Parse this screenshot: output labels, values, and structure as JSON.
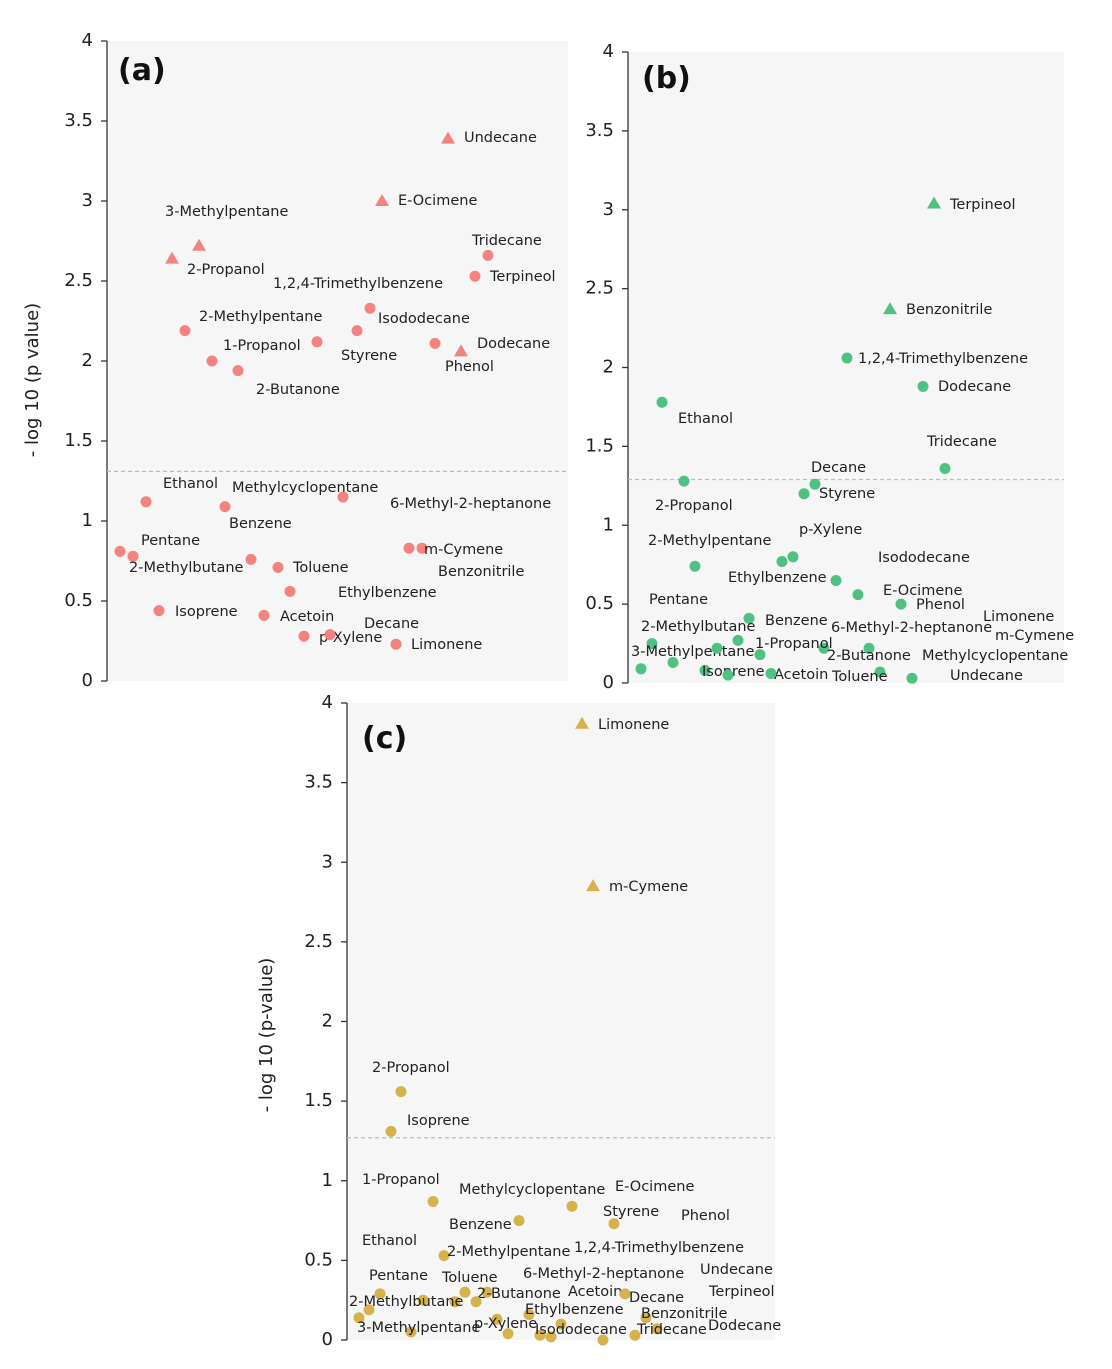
{
  "chart_data": [
    {
      "type": "scatter",
      "panel_label": "(a)",
      "ylabel": "- log 10 (p value)",
      "ylim": [
        0,
        4
      ],
      "yticks": [
        "0",
        "0.5",
        "1",
        "1.5",
        "2",
        "2.5",
        "3",
        "3.5",
        "4"
      ],
      "threshold": 1.31,
      "color": "#f4837f",
      "points": [
        {
          "label": "Undecane",
          "y": 3.39,
          "marker": "triangle"
        },
        {
          "label": "E-Ocimene",
          "y": 3.0,
          "marker": "triangle"
        },
        {
          "label": "3-Methylpentane",
          "y": 2.72,
          "marker": "triangle"
        },
        {
          "label": "2-Propanol",
          "y": 2.64,
          "marker": "triangle"
        },
        {
          "label": "Phenol",
          "y": 2.06,
          "marker": "triangle"
        },
        {
          "label": "Tridecane",
          "y": 2.66,
          "marker": "circle"
        },
        {
          "label": "Terpineol",
          "y": 2.53,
          "marker": "circle"
        },
        {
          "label": "1,2,4-Trimethylbenzene",
          "y": 2.33,
          "marker": "circle"
        },
        {
          "label": "Isododecane",
          "y": 2.19,
          "marker": "circle"
        },
        {
          "label": "2-Methylpentane",
          "y": 2.19,
          "marker": "circle"
        },
        {
          "label": "Dodecane",
          "y": 2.11,
          "marker": "circle"
        },
        {
          "label": "Styrene",
          "y": 2.12,
          "marker": "circle"
        },
        {
          "label": "1-Propanol",
          "y": 2.0,
          "marker": "circle"
        },
        {
          "label": "2-Butanone",
          "y": 1.94,
          "marker": "circle"
        },
        {
          "label": "Ethanol",
          "y": 1.12,
          "marker": "circle"
        },
        {
          "label": "Methylcyclopentane",
          "y": 1.15,
          "marker": "circle"
        },
        {
          "label": "Benzene",
          "y": 1.09,
          "marker": "circle"
        },
        {
          "label": "6-Methyl-2-heptanone",
          "y": 0.83,
          "marker": "circle"
        },
        {
          "label": "m-Cymene",
          "y": 0.83,
          "marker": "circle"
        },
        {
          "label": "Pentane",
          "y": 0.81,
          "marker": "circle"
        },
        {
          "label": "2-Methylbutane",
          "y": 0.78,
          "marker": "circle"
        },
        {
          "label": "Benzonitrile",
          "y": 0.76,
          "marker": "circle"
        },
        {
          "label": "Toluene",
          "y": 0.71,
          "marker": "circle"
        },
        {
          "label": "Ethylbenzene",
          "y": 0.56,
          "marker": "circle"
        },
        {
          "label": "Isoprene",
          "y": 0.44,
          "marker": "circle"
        },
        {
          "label": "Acetoin",
          "y": 0.41,
          "marker": "circle"
        },
        {
          "label": "p-Xylene",
          "y": 0.28,
          "marker": "circle"
        },
        {
          "label": "Decane",
          "y": 0.29,
          "marker": "circle"
        },
        {
          "label": "Limonene",
          "y": 0.23,
          "marker": "circle"
        }
      ]
    },
    {
      "type": "scatter",
      "panel_label": "(b)",
      "ylabel": "",
      "ylim": [
        0,
        4
      ],
      "yticks": [
        "0",
        "0.5",
        "1",
        "1.5",
        "2",
        "2.5",
        "3",
        "3.5",
        "4"
      ],
      "threshold": 1.29,
      "color": "#4fc183",
      "points": [
        {
          "label": "Terpineol",
          "y": 3.04,
          "marker": "triangle"
        },
        {
          "label": "Benzonitrile",
          "y": 2.37,
          "marker": "triangle"
        },
        {
          "label": "1,2,4-Trimethylbenzene",
          "y": 2.06,
          "marker": "circle"
        },
        {
          "label": "Dodecane",
          "y": 1.88,
          "marker": "circle"
        },
        {
          "label": "Ethanol",
          "y": 1.78,
          "marker": "circle"
        },
        {
          "label": "Tridecane",
          "y": 1.36,
          "marker": "circle"
        },
        {
          "label": "Decane",
          "y": 1.26,
          "marker": "circle"
        },
        {
          "label": "2-Propanol",
          "y": 1.28,
          "marker": "circle"
        },
        {
          "label": "Styrene",
          "y": 1.2,
          "marker": "circle"
        },
        {
          "label": "p-Xylene",
          "y": 0.8,
          "marker": "circle"
        },
        {
          "label": "Isododecane",
          "y": 0.77,
          "marker": "circle"
        },
        {
          "label": "2-Methylpentane",
          "y": 0.74,
          "marker": "circle"
        },
        {
          "label": "Ethylbenzene",
          "y": 0.65,
          "marker": "circle"
        },
        {
          "label": "E-Ocimene",
          "y": 0.56,
          "marker": "circle"
        },
        {
          "label": "Phenol",
          "y": 0.5,
          "marker": "circle"
        },
        {
          "label": "Benzene",
          "y": 0.41,
          "marker": "circle"
        },
        {
          "label": "3-Methylpentane",
          "y": 0.25,
          "marker": "circle"
        },
        {
          "label": "2-Methylbutane",
          "y": 0.27,
          "marker": "circle"
        },
        {
          "label": "Pentane",
          "y": 0.22,
          "marker": "circle"
        },
        {
          "label": "6-Methyl-2-heptanone",
          "y": 0.22,
          "marker": "circle"
        },
        {
          "label": "2-Butanone",
          "y": 0.22,
          "marker": "circle"
        },
        {
          "label": "1-Propanol",
          "y": 0.18,
          "marker": "circle"
        },
        {
          "label": "Limonene",
          "y": 0.13,
          "marker": "circle"
        },
        {
          "label": "m-Cymene",
          "y": 0.09,
          "marker": "circle"
        },
        {
          "label": "Isoprene",
          "y": 0.08,
          "marker": "circle"
        },
        {
          "label": "Acetoin",
          "y": 0.05,
          "marker": "circle"
        },
        {
          "label": "Methylcyclopentane",
          "y": 0.06,
          "marker": "circle"
        },
        {
          "label": "Toluene",
          "y": 0.07,
          "marker": "circle"
        },
        {
          "label": "Undecane",
          "y": 0.03,
          "marker": "circle"
        }
      ]
    },
    {
      "type": "scatter",
      "panel_label": "(c)",
      "ylabel": "- log 10 (p-value)",
      "ylim": [
        0,
        4
      ],
      "yticks": [
        "0",
        "0.5",
        "1",
        "1.5",
        "2",
        "2.5",
        "3",
        "3.5",
        "4"
      ],
      "threshold": 1.27,
      "color": "#d5b24b",
      "points": [
        {
          "label": "Limonene",
          "y": 3.87,
          "marker": "triangle"
        },
        {
          "label": "m-Cymene",
          "y": 2.85,
          "marker": "triangle"
        },
        {
          "label": "2-Propanol",
          "y": 1.56,
          "marker": "circle"
        },
        {
          "label": "Isoprene",
          "y": 1.31,
          "marker": "circle"
        },
        {
          "label": "1-Propanol",
          "y": 0.87,
          "marker": "circle"
        },
        {
          "label": "Methylcyclopentane",
          "y": 0.84,
          "marker": "circle"
        },
        {
          "label": "E-Ocimene",
          "y": 0.03,
          "marker": "circle"
        },
        {
          "label": "Benzene",
          "y": 0.75,
          "marker": "circle"
        },
        {
          "label": "Styrene",
          "y": 0.73,
          "marker": "circle"
        },
        {
          "label": "Phenol",
          "y": 0.05,
          "marker": "circle"
        },
        {
          "label": "Ethanol",
          "y": 0.25,
          "marker": "circle"
        },
        {
          "label": "2-Methylpentane",
          "y": 0.53,
          "marker": "circle"
        },
        {
          "label": "1,2,4-Trimethylbenzene",
          "y": 0.04,
          "marker": "circle"
        },
        {
          "label": "Pentane",
          "y": 0.29,
          "marker": "circle"
        },
        {
          "label": "Toluene",
          "y": 0.3,
          "marker": "circle"
        },
        {
          "label": "6-Methyl-2-heptanone",
          "y": 0.24,
          "marker": "circle"
        },
        {
          "label": "Undecane",
          "y": 0.02,
          "marker": "circle"
        },
        {
          "label": "2-Methylbutane",
          "y": 0.19,
          "marker": "circle"
        },
        {
          "label": "2-Butanone",
          "y": 0.3,
          "marker": "circle"
        },
        {
          "label": "Acetoin",
          "y": 0.24,
          "marker": "circle"
        },
        {
          "label": "Decane",
          "y": 0.29,
          "marker": "circle"
        },
        {
          "label": "Terpineol",
          "y": 0.07,
          "marker": "circle"
        },
        {
          "label": "Ethylbenzene",
          "y": 0.16,
          "marker": "circle"
        },
        {
          "label": "Benzonitrile",
          "y": 0.14,
          "marker": "circle"
        },
        {
          "label": "3-Methylpentane",
          "y": 0.14,
          "marker": "circle"
        },
        {
          "label": "p-Xylene",
          "y": 0.13,
          "marker": "circle"
        },
        {
          "label": "Isododecane",
          "y": 0.1,
          "marker": "circle"
        },
        {
          "label": "Tridecane",
          "y": 0.03,
          "marker": "circle"
        },
        {
          "label": "Dodecane",
          "y": 0.0,
          "marker": "circle"
        }
      ]
    }
  ]
}
